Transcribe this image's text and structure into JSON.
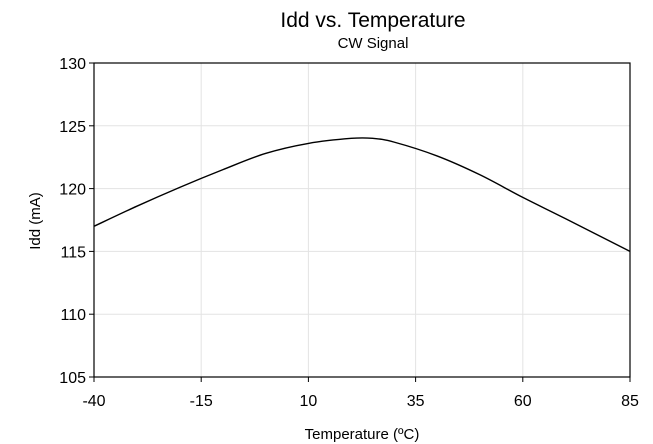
{
  "chart_data": {
    "type": "line",
    "title": "Idd vs. Temperature",
    "subtitle": "CW Signal",
    "xlabel": "Temperature (ºC)",
    "ylabel": "Idd (mA)",
    "xlim": [
      -40,
      85
    ],
    "ylim": [
      105,
      130
    ],
    "xticks": [
      "-40",
      "-15",
      "10",
      "35",
      "60",
      "85"
    ],
    "yticks": [
      "105",
      "110",
      "115",
      "120",
      "125",
      "130"
    ],
    "grid": true,
    "series": [
      {
        "x": [
          -40,
          -30,
          -20,
          -10,
          0,
          10,
          20,
          25,
          30,
          40,
          50,
          60,
          70,
          85
        ],
        "y": [
          117.0,
          118.6,
          120.1,
          121.5,
          122.8,
          123.6,
          124.0,
          124.0,
          123.7,
          122.6,
          121.1,
          119.3,
          117.6,
          115.0
        ]
      }
    ]
  }
}
